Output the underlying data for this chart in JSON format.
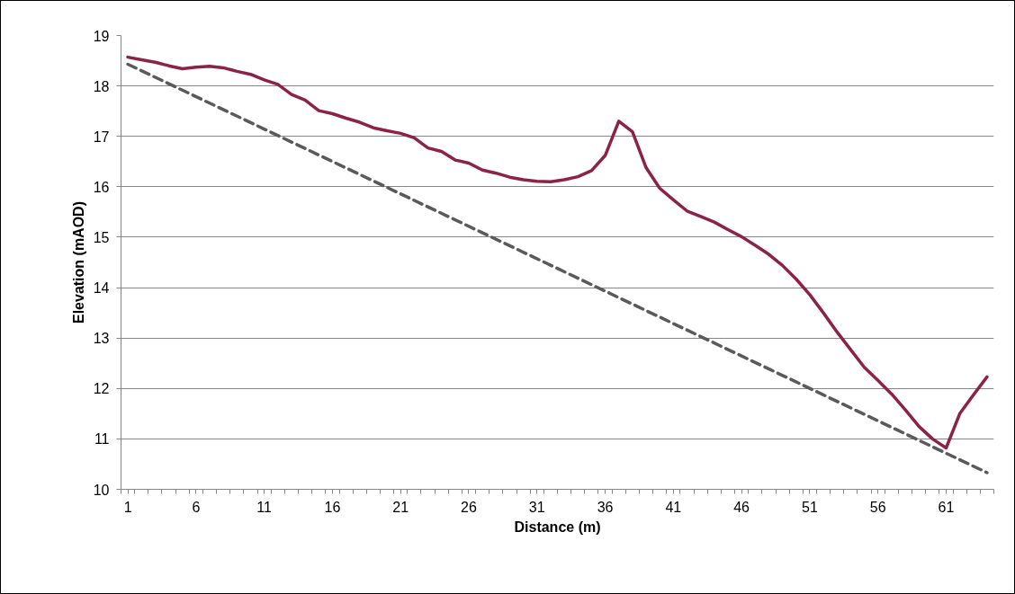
{
  "chart_data": {
    "type": "line",
    "xlabel": "Distance (m)",
    "ylabel": "Elevation (mAOD)",
    "x": [
      1,
      2,
      3,
      4,
      5,
      6,
      7,
      8,
      9,
      10,
      11,
      12,
      13,
      14,
      15,
      16,
      17,
      18,
      19,
      20,
      21,
      22,
      23,
      24,
      25,
      26,
      27,
      28,
      29,
      30,
      31,
      32,
      33,
      34,
      35,
      36,
      37,
      38,
      39,
      40,
      41,
      42,
      43,
      44,
      45,
      46,
      47,
      48,
      49,
      50,
      51,
      52,
      53,
      54,
      55,
      56,
      57,
      58,
      59,
      60,
      61,
      62,
      63,
      64
    ],
    "series": [
      {
        "color": "#8c2346",
        "line_style": "solid",
        "values": [
          18.57,
          18.52,
          18.47,
          18.4,
          18.34,
          18.37,
          18.39,
          18.36,
          18.29,
          18.23,
          18.12,
          18.03,
          17.83,
          17.72,
          17.51,
          17.45,
          17.36,
          17.28,
          17.17,
          17.11,
          17.06,
          16.97,
          16.77,
          16.7,
          16.53,
          16.47,
          16.33,
          16.27,
          16.19,
          16.14,
          16.11,
          16.1,
          16.14,
          16.2,
          16.32,
          16.62,
          17.3,
          17.09,
          16.38,
          15.97,
          15.74,
          15.52,
          15.41,
          15.3,
          15.15,
          15.01,
          14.84,
          14.66,
          14.44,
          14.17,
          13.86,
          13.5,
          13.12,
          12.77,
          12.42,
          12.16,
          11.89,
          11.58,
          11.25,
          11.0,
          10.82,
          11.5,
          11.87,
          12.23
        ]
      },
      {
        "type": "line",
        "color": "#5a5a5a",
        "line_style": "dashed",
        "x": [
          1,
          64
        ],
        "values": [
          18.43,
          10.33
        ]
      }
    ],
    "xlim": [
      0.5,
      64.5
    ],
    "xticks": [
      1,
      6,
      11,
      16,
      21,
      26,
      31,
      36,
      41,
      46,
      51,
      56,
      61,
      {
        "value": 0.5,
        "label": null
      },
      {
        "value": 1.5,
        "label": null
      },
      {
        "value": 2.5,
        "label": null
      },
      {
        "value": 3.5,
        "label": null
      },
      {
        "value": 4.5,
        "label": null
      },
      {
        "value": 5.5,
        "label": null
      },
      {
        "value": 6.5,
        "label": null
      },
      {
        "value": 7.5,
        "label": null
      },
      {
        "value": 8.5,
        "label": null
      },
      {
        "value": 9.5,
        "label": null
      },
      {
        "value": 10.5,
        "label": null
      },
      {
        "value": 11.5,
        "label": null
      },
      {
        "value": 12.5,
        "label": null
      },
      {
        "value": 13.5,
        "label": null
      },
      {
        "value": 14.5,
        "label": null
      },
      {
        "value": 15.5,
        "label": null
      },
      {
        "value": 16.5,
        "label": null
      },
      {
        "value": 17.5,
        "label": null
      },
      {
        "value": 18.5,
        "label": null
      },
      {
        "value": 19.5,
        "label": null
      },
      {
        "value": 20.5,
        "label": null
      },
      {
        "value": 21.5,
        "label": null
      },
      {
        "value": 22.5,
        "label": null
      },
      {
        "value": 23.5,
        "label": null
      },
      {
        "value": 24.5,
        "label": null
      },
      {
        "value": 25.5,
        "label": null
      },
      {
        "value": 26.5,
        "label": null
      },
      {
        "value": 27.5,
        "label": null
      },
      {
        "value": 28.5,
        "label": null
      },
      {
        "value": 29.5,
        "label": null
      },
      {
        "value": 30.5,
        "label": null
      },
      {
        "value": 31.5,
        "label": null
      },
      {
        "value": 32.5,
        "label": null
      },
      {
        "value": 33.5,
        "label": null
      },
      {
        "value": 34.5,
        "label": null
      },
      {
        "value": 35.5,
        "label": null
      },
      {
        "value": 36.5,
        "label": null
      },
      {
        "value": 37.5,
        "label": null
      },
      {
        "value": 38.5,
        "label": null
      },
      {
        "value": 39.5,
        "label": null
      },
      {
        "value": 40.5,
        "label": null
      },
      {
        "value": 41.5,
        "label": null
      },
      {
        "value": 42.5,
        "label": null
      },
      {
        "value": 43.5,
        "label": null
      },
      {
        "value": 44.5,
        "label": null
      },
      {
        "value": 45.5,
        "label": null
      },
      {
        "value": 46.5,
        "label": null
      },
      {
        "value": 47.5,
        "label": null
      },
      {
        "value": 48.5,
        "label": null
      },
      {
        "value": 49.5,
        "label": null
      },
      {
        "value": 50.5,
        "label": null
      },
      {
        "value": 51.5,
        "label": null
      },
      {
        "value": 52.5,
        "label": null
      },
      {
        "value": 53.5,
        "label": null
      },
      {
        "value": 54.5,
        "label": null
      },
      {
        "value": 55.5,
        "label": null
      },
      {
        "value": 56.5,
        "label": null
      },
      {
        "value": 57.5,
        "label": null
      },
      {
        "value": 58.5,
        "label": null
      },
      {
        "value": 59.5,
        "label": null
      },
      {
        "value": 60.5,
        "label": null
      },
      {
        "value": 61.5,
        "label": null
      },
      {
        "value": 62.5,
        "label": null
      },
      {
        "value": 63.5,
        "label": null
      },
      {
        "value": 64.5,
        "label": null
      }
    ],
    "ylim": [
      10,
      19
    ],
    "yticks": [
      10,
      11,
      12,
      13,
      14,
      15,
      16,
      17,
      18,
      19
    ],
    "grid": "y",
    "marker": "none"
  }
}
